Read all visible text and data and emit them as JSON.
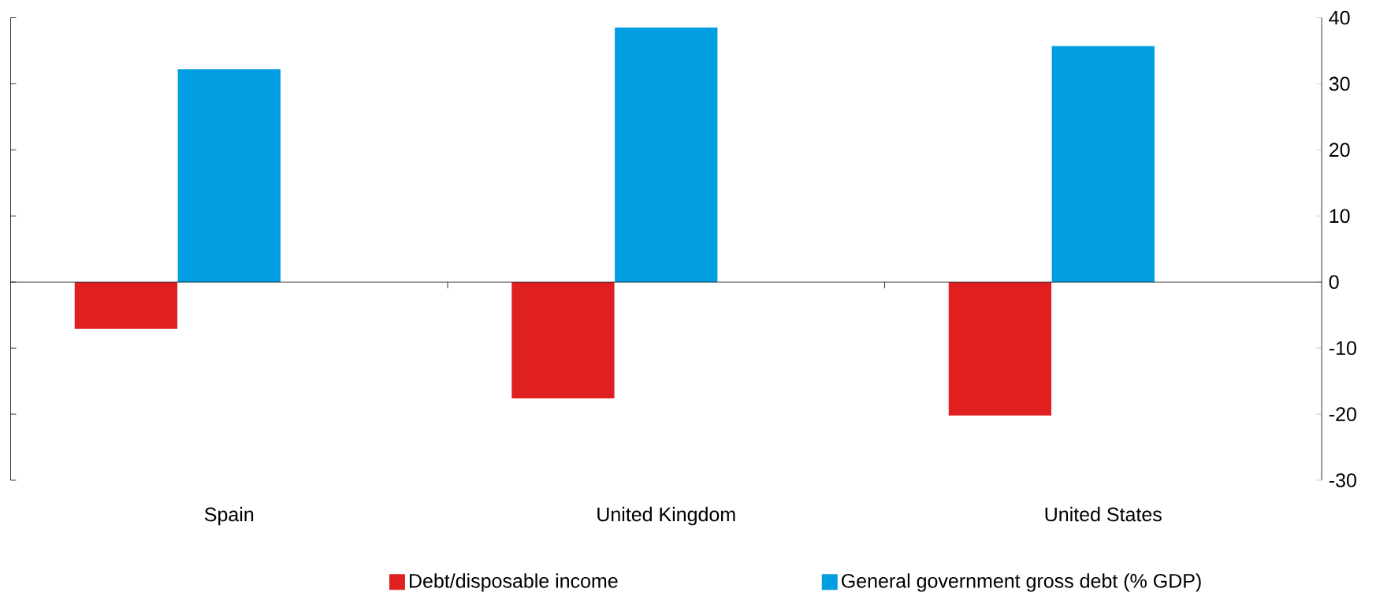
{
  "chart_data": {
    "type": "bar",
    "categories": [
      "Spain",
      "United Kingdom",
      "United States"
    ],
    "series": [
      {
        "name": "Debt/disposable income",
        "color": "#e02020",
        "values": [
          -7.1,
          -17.6,
          -20.2
        ]
      },
      {
        "name": "General government gross debt (% GDP)",
        "color": "#009ee0",
        "values": [
          32.2,
          38.5,
          35.7
        ]
      }
    ],
    "ylim": [
      -30,
      40
    ],
    "yticks": [
      -30,
      -20,
      -10,
      0,
      10,
      20,
      30,
      40
    ],
    "ref_lines": [
      {
        "axis": "y",
        "value": 0,
        "color": "#000000"
      }
    ],
    "legend": "bottom",
    "grid": false
  }
}
